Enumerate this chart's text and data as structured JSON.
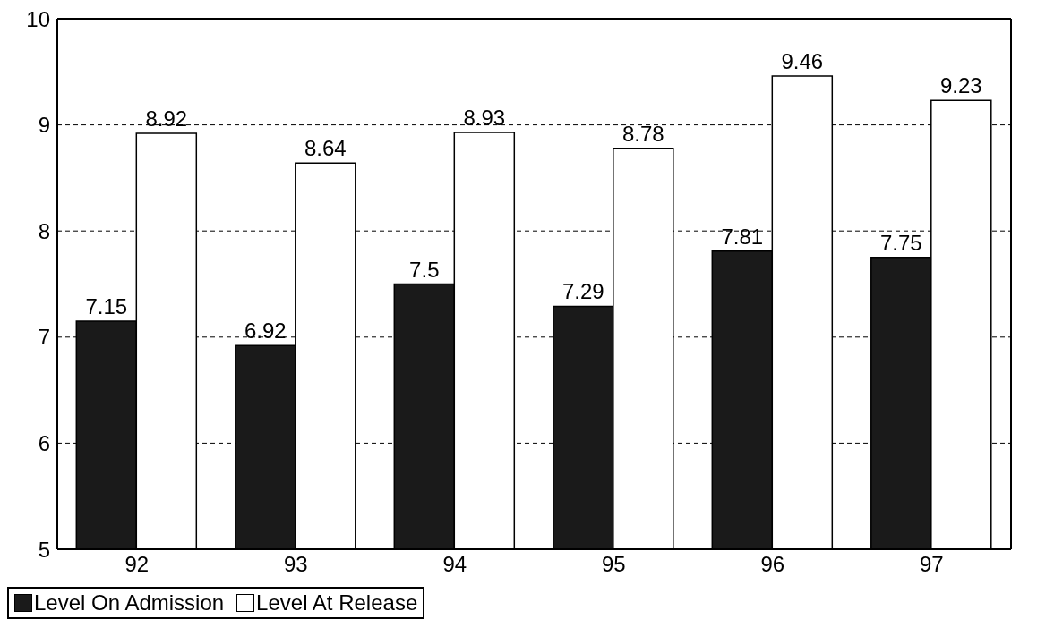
{
  "chart_data": {
    "type": "bar",
    "categories": [
      "92",
      "93",
      "94",
      "95",
      "96",
      "97"
    ],
    "series": [
      {
        "name": "Level On Admission",
        "color": "#1a1a1a",
        "values": [
          7.15,
          6.92,
          7.5,
          7.29,
          7.81,
          7.75
        ]
      },
      {
        "name": "Level At Release",
        "color": "#ffffff",
        "values": [
          8.92,
          8.64,
          8.93,
          8.78,
          9.46,
          9.23
        ]
      }
    ],
    "ylim": [
      5,
      10
    ],
    "yticks": [
      5,
      6,
      7,
      8,
      9,
      10
    ],
    "grid": "y",
    "legend": "bottom",
    "data_labels": true
  }
}
